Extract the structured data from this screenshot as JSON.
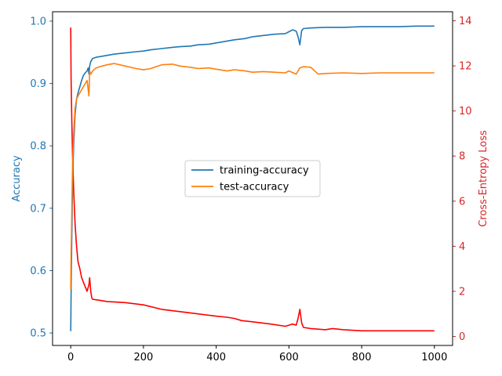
{
  "chart_data": {
    "type": "line",
    "x_range": [
      0,
      1000
    ],
    "xticks": [
      0,
      200,
      400,
      600,
      800,
      1000
    ],
    "left_axis": {
      "label": "Accuracy",
      "color": "#1f77b4",
      "ylim": [
        0.48,
        1.015
      ],
      "ticks": [
        0.5,
        0.6,
        0.7,
        0.8,
        0.9,
        1.0
      ],
      "tick_labels": [
        "0.5",
        "0.6",
        "0.7",
        "0.8",
        "0.9",
        "1.0"
      ]
    },
    "right_axis": {
      "label": "Cross-Entropy Loss",
      "color": "#d62728",
      "ylim": [
        -0.4,
        14.4
      ],
      "ticks": [
        0,
        2,
        4,
        6,
        8,
        10,
        12,
        14
      ],
      "tick_labels": [
        "0",
        "2",
        "4",
        "6",
        "8",
        "10",
        "12",
        "14"
      ]
    },
    "legend": {
      "placement": "center"
    },
    "series": [
      {
        "name": "training-accuracy",
        "axis": "left",
        "color": "#1f77b4",
        "x": [
          0,
          1,
          3,
          5,
          8,
          12,
          16,
          20,
          25,
          30,
          35,
          40,
          45,
          48,
          50,
          52,
          55,
          60,
          70,
          80,
          100,
          120,
          150,
          180,
          200,
          220,
          250,
          280,
          300,
          330,
          350,
          380,
          400,
          430,
          450,
          480,
          500,
          530,
          560,
          590,
          600,
          610,
          620,
          625,
          630,
          635,
          640,
          660,
          700,
          750,
          800,
          850,
          900,
          950,
          1000
        ],
        "y": [
          0.503,
          0.56,
          0.66,
          0.74,
          0.8,
          0.85,
          0.875,
          0.885,
          0.895,
          0.905,
          0.913,
          0.917,
          0.92,
          0.925,
          0.915,
          0.928,
          0.935,
          0.94,
          0.942,
          0.943,
          0.945,
          0.947,
          0.949,
          0.951,
          0.952,
          0.954,
          0.956,
          0.958,
          0.959,
          0.96,
          0.962,
          0.963,
          0.965,
          0.968,
          0.97,
          0.972,
          0.975,
          0.977,
          0.979,
          0.98,
          0.983,
          0.986,
          0.984,
          0.975,
          0.962,
          0.985,
          0.988,
          0.989,
          0.99,
          0.99,
          0.991,
          0.991,
          0.991,
          0.992,
          0.992
        ]
      },
      {
        "name": "test-accuracy",
        "axis": "left",
        "color": "#ff7f0e",
        "x": [
          0,
          1,
          3,
          5,
          8,
          12,
          16,
          20,
          25,
          30,
          35,
          40,
          45,
          48,
          50,
          52,
          55,
          60,
          70,
          80,
          100,
          120,
          150,
          180,
          200,
          220,
          250,
          280,
          300,
          330,
          350,
          380,
          400,
          430,
          450,
          480,
          500,
          530,
          560,
          590,
          600,
          620,
          630,
          640,
          660,
          680,
          700,
          750,
          800,
          850,
          900,
          950,
          1000
        ],
        "y": [
          0.57,
          0.62,
          0.7,
          0.77,
          0.82,
          0.86,
          0.875,
          0.88,
          0.885,
          0.89,
          0.895,
          0.9,
          0.905,
          0.89,
          0.88,
          0.92,
          0.915,
          0.92,
          0.925,
          0.927,
          0.93,
          0.932,
          0.928,
          0.924,
          0.922,
          0.924,
          0.93,
          0.931,
          0.928,
          0.926,
          0.924,
          0.925,
          0.923,
          0.92,
          0.922,
          0.92,
          0.918,
          0.919,
          0.918,
          0.917,
          0.92,
          0.915,
          0.925,
          0.927,
          0.926,
          0.915,
          0.916,
          0.917,
          0.916,
          0.917,
          0.917,
          0.917,
          0.917
        ]
      },
      {
        "name": "loss",
        "axis": "right",
        "color": "#ff0000",
        "x": [
          0,
          1,
          3,
          5,
          8,
          12,
          16,
          20,
          25,
          30,
          40,
          45,
          50,
          52,
          55,
          58,
          60,
          80,
          100,
          150,
          200,
          250,
          300,
          350,
          400,
          430,
          450,
          470,
          500,
          550,
          590,
          600,
          610,
          620,
          625,
          630,
          635,
          640,
          660,
          700,
          720,
          750,
          800,
          900,
          1000
        ],
        "y": [
          13.7,
          11.5,
          9.5,
          8.0,
          6.5,
          5.0,
          4.0,
          3.3,
          3.0,
          2.6,
          2.2,
          2.0,
          2.3,
          2.6,
          2.0,
          1.7,
          1.65,
          1.6,
          1.55,
          1.5,
          1.4,
          1.2,
          1.1,
          1.0,
          0.9,
          0.85,
          0.8,
          0.7,
          0.65,
          0.55,
          0.45,
          0.5,
          0.55,
          0.5,
          0.8,
          1.2,
          0.6,
          0.4,
          0.35,
          0.3,
          0.35,
          0.3,
          0.25,
          0.25,
          0.25
        ]
      }
    ]
  }
}
